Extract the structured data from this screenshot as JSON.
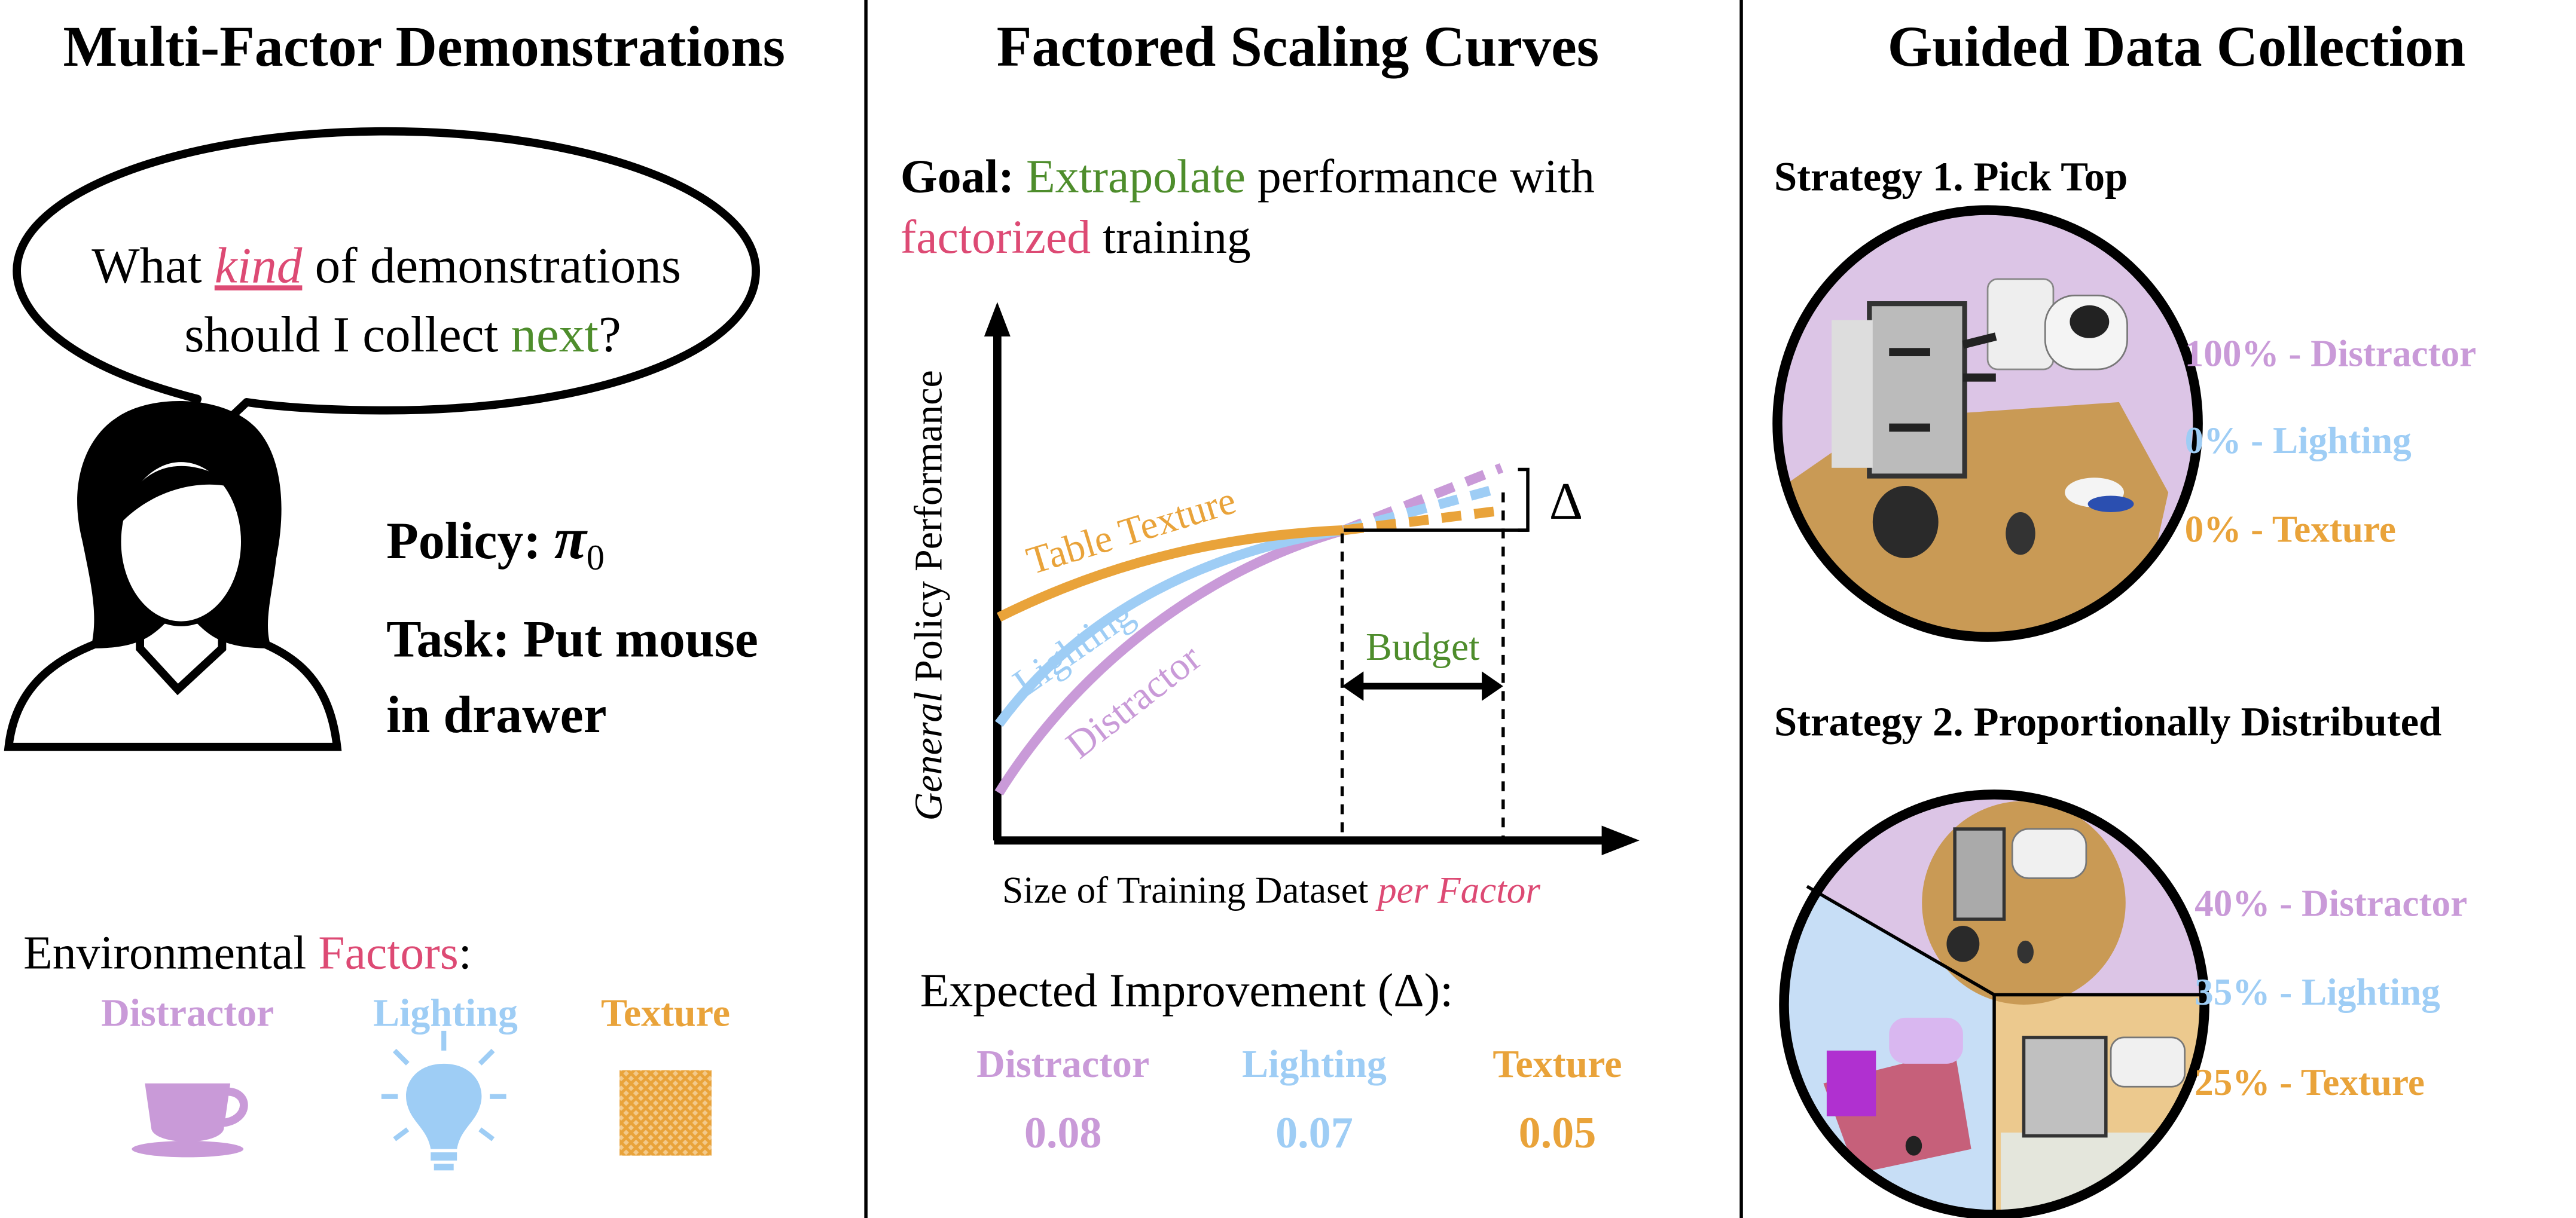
{
  "colors": {
    "distractor": "#c99ad8",
    "lighting": "#9ecdf5",
    "texture": "#e9a33a",
    "green": "#4e8d2c",
    "pink": "#dd4a74"
  },
  "left": {
    "title": "Multi-Factor Demonstrations",
    "bubble": {
      "line1_a": "What ",
      "line1_kind": "kind",
      "line1_b": " of demonstrations",
      "line2_a": "should I collect ",
      "line2_next": "next",
      "line2_b": "?"
    },
    "policy_label": "Policy: ",
    "policy_value": "π",
    "policy_sub": "0",
    "task_line1": "Task: Put mouse",
    "task_line2": "in drawer",
    "env_a": "Environmental ",
    "env_factors": "Factors",
    "env_b": ":",
    "factors": [
      {
        "label": "Distractor",
        "icon": "cup-icon"
      },
      {
        "label": "Lighting",
        "icon": "lightbulb-icon"
      },
      {
        "label": "Texture",
        "icon": "texture-pattern-icon"
      }
    ]
  },
  "middle": {
    "title": "Factored Scaling Curves",
    "goal_label": "Goal: ",
    "goal_extrapolate": "Extrapolate",
    "goal_rest": " performance with",
    "goal_factorized": "factorized",
    "goal_training": " training",
    "chart": {
      "ylabel_italic": "General",
      "ylabel_rest": " Policy Performance",
      "xlabel_a": "Size of Training Dataset ",
      "xlabel_italic": "per Factor",
      "curve_labels": [
        "Table Texture",
        "Lighting",
        "Distractor"
      ],
      "budget_label": "Budget",
      "delta_label": "Δ"
    },
    "expected_label": "Expected Improvement (Δ):",
    "improvements": [
      {
        "label": "Distractor",
        "value": "0.08"
      },
      {
        "label": "Lighting",
        "value": "0.07"
      },
      {
        "label": "Texture",
        "value": "0.05"
      }
    ]
  },
  "right": {
    "title": "Guided Data Collection",
    "strategy1": {
      "title": "Strategy 1. Pick Top",
      "items": [
        "100% - Distractor",
        "0% - Lighting",
        "0% - Texture"
      ],
      "shares": [
        100,
        0,
        0
      ]
    },
    "strategy2": {
      "title": "Strategy 2. Proportionally Distributed",
      "items": [
        "40% - Distractor",
        "35% - Lighting",
        "25% - Texture"
      ],
      "shares": [
        40,
        35,
        25
      ]
    }
  }
}
